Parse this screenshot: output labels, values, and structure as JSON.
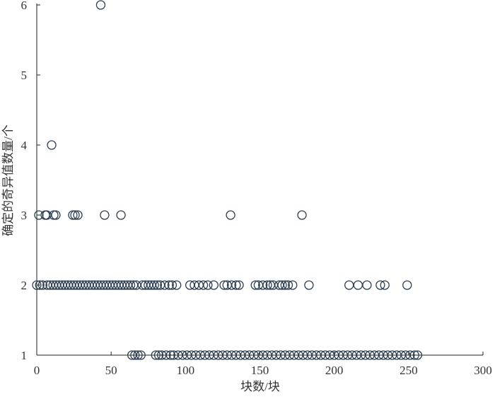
{
  "chart_data": {
    "type": "scatter",
    "xlabel": "块数/块",
    "ylabel": "确定的奇异值数量/个",
    "xlim": [
      0,
      300
    ],
    "ylim": [
      1,
      6
    ],
    "xticks": [
      0,
      50,
      100,
      150,
      200,
      250,
      300
    ],
    "yticks": [
      1,
      2,
      3,
      4,
      5,
      6
    ],
    "color": "#2e3f52",
    "x": [
      43,
      10,
      1.4,
      5.7,
      6.7,
      11.4,
      12.8,
      24.2,
      25.7,
      27.6,
      45.6,
      56.6,
      130.3,
      178.3,
      0,
      2,
      4,
      7,
      9,
      11,
      13,
      15,
      17,
      19,
      21,
      23,
      25,
      27,
      29,
      31,
      33,
      35,
      37,
      39,
      41,
      43,
      45,
      47,
      49,
      51,
      53,
      55,
      57,
      59,
      61,
      63,
      65,
      67,
      71,
      73,
      75,
      77,
      79,
      81,
      83,
      86,
      89,
      91,
      94,
      103,
      106,
      109,
      112,
      115,
      119,
      126,
      128,
      131,
      134,
      136,
      147,
      149,
      152,
      155,
      157,
      159,
      163,
      165,
      167,
      169,
      172,
      183,
      210,
      216,
      222,
      231,
      234,
      249,
      64,
      66,
      68,
      70,
      80,
      82,
      84,
      87,
      90,
      92,
      95,
      98,
      101,
      104,
      107,
      110,
      113,
      116,
      119,
      122,
      125,
      128,
      131,
      134,
      137,
      140,
      143,
      146,
      149,
      152,
      155,
      158,
      161,
      164,
      167,
      170,
      173,
      176,
      179,
      182,
      185,
      188,
      191,
      194,
      197,
      200,
      203,
      206,
      209,
      212,
      215,
      218,
      221,
      224,
      227,
      230,
      233,
      236,
      239,
      242,
      245,
      248,
      251,
      254,
      256
    ],
    "values": [
      6,
      4,
      3,
      3,
      3,
      3,
      3,
      3,
      3,
      3,
      3,
      3,
      3,
      3,
      2,
      2,
      2,
      2,
      2,
      2,
      2,
      2,
      2,
      2,
      2,
      2,
      2,
      2,
      2,
      2,
      2,
      2,
      2,
      2,
      2,
      2,
      2,
      2,
      2,
      2,
      2,
      2,
      2,
      2,
      2,
      2,
      2,
      2,
      2,
      2,
      2,
      2,
      2,
      2,
      2,
      2,
      2,
      2,
      2,
      2,
      2,
      2,
      2,
      2,
      2,
      2,
      2,
      2,
      2,
      2,
      2,
      2,
      2,
      2,
      2,
      2,
      2,
      2,
      2,
      2,
      2,
      2,
      2,
      2,
      2,
      2,
      2,
      2,
      1,
      1,
      1,
      1,
      1,
      1,
      1,
      1,
      1,
      1,
      1,
      1,
      1,
      1,
      1,
      1,
      1,
      1,
      1,
      1,
      1,
      1,
      1,
      1,
      1,
      1,
      1,
      1,
      1,
      1,
      1,
      1,
      1,
      1,
      1,
      1,
      1,
      1,
      1,
      1,
      1,
      1,
      1,
      1,
      1,
      1,
      1,
      1,
      1,
      1,
      1,
      1,
      1,
      1,
      1,
      1,
      1,
      1,
      1,
      1,
      1,
      1,
      1,
      1,
      1
    ]
  }
}
